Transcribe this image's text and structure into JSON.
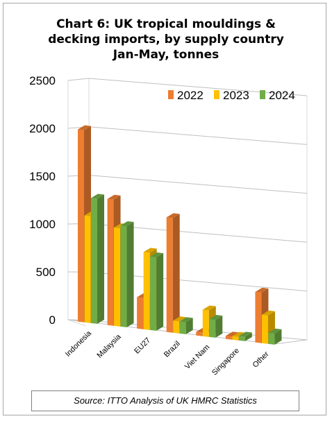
{
  "chart_data": {
    "type": "bar",
    "title_lines": [
      "Chart 6: UK tropical mouldings &",
      "decking imports, by supply country",
      "Jan-May, tonnes"
    ],
    "categories": [
      "Indonesia",
      "Malaysia",
      "EU27",
      "Brazil",
      "Viet Nam",
      "Singapore",
      "Other"
    ],
    "series": [
      {
        "name": "2022",
        "color": "#ed7d31",
        "values": [
          2000,
          1310,
          320,
          1190,
          30,
          25,
          520
        ]
      },
      {
        "name": "2023",
        "color": "#ffc000",
        "values": [
          1110,
          1020,
          800,
          120,
          270,
          30,
          290
        ]
      },
      {
        "name": "2024",
        "color": "#70ad47",
        "values": [
          1300,
          1050,
          760,
          120,
          180,
          40,
          110
        ]
      }
    ],
    "yticks": [
      "0",
      "500",
      "1000",
      "1500",
      "2000",
      "2500"
    ],
    "ylim": [
      0,
      2500
    ],
    "legend_position": "top-right",
    "grid": true
  },
  "source": "Source: ITTO Analysis of UK HMRC Statistics"
}
